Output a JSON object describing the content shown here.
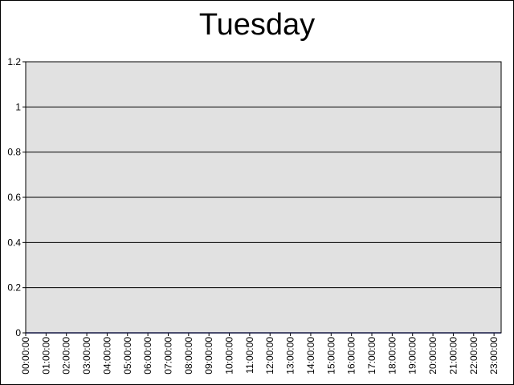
{
  "chart_data": {
    "type": "line",
    "title": "Tuesday",
    "xlabel": "",
    "ylabel": "",
    "ylim": [
      0,
      1.2
    ],
    "y_ticks": [
      "0",
      "0.2",
      "0.4",
      "0.6",
      "0.8",
      "1",
      "1.2"
    ],
    "y_tick_values": [
      0,
      0.2,
      0.4,
      0.6,
      0.8,
      1,
      1.2
    ],
    "categories": [
      "00:00:00",
      "01:00:00",
      "02:00:00",
      "03:00:00",
      "04:00:00",
      "05:00:00",
      "06:00:00",
      "07:00:00",
      "08:00:00",
      "09:00:00",
      "10:00:00",
      "11:00:00",
      "12:00:00",
      "13:00:00",
      "14:00:00",
      "15:00:00",
      "16:00:00",
      "17:00:00",
      "18:00:00",
      "19:00:00",
      "20:00:00",
      "21:00:00",
      "22:00:00",
      "23:00:00"
    ],
    "series": [
      {
        "values": [
          0,
          0,
          0,
          0,
          0,
          0,
          0,
          0,
          0,
          0,
          0,
          0,
          0,
          0,
          0,
          0,
          0,
          0,
          0,
          0,
          0,
          0,
          0,
          0
        ]
      }
    ],
    "grid": true,
    "legend": "none",
    "colors": {
      "plot_background": "#e1e1e1",
      "gridline": "#000000",
      "series_line": "#3f48cc"
    }
  }
}
